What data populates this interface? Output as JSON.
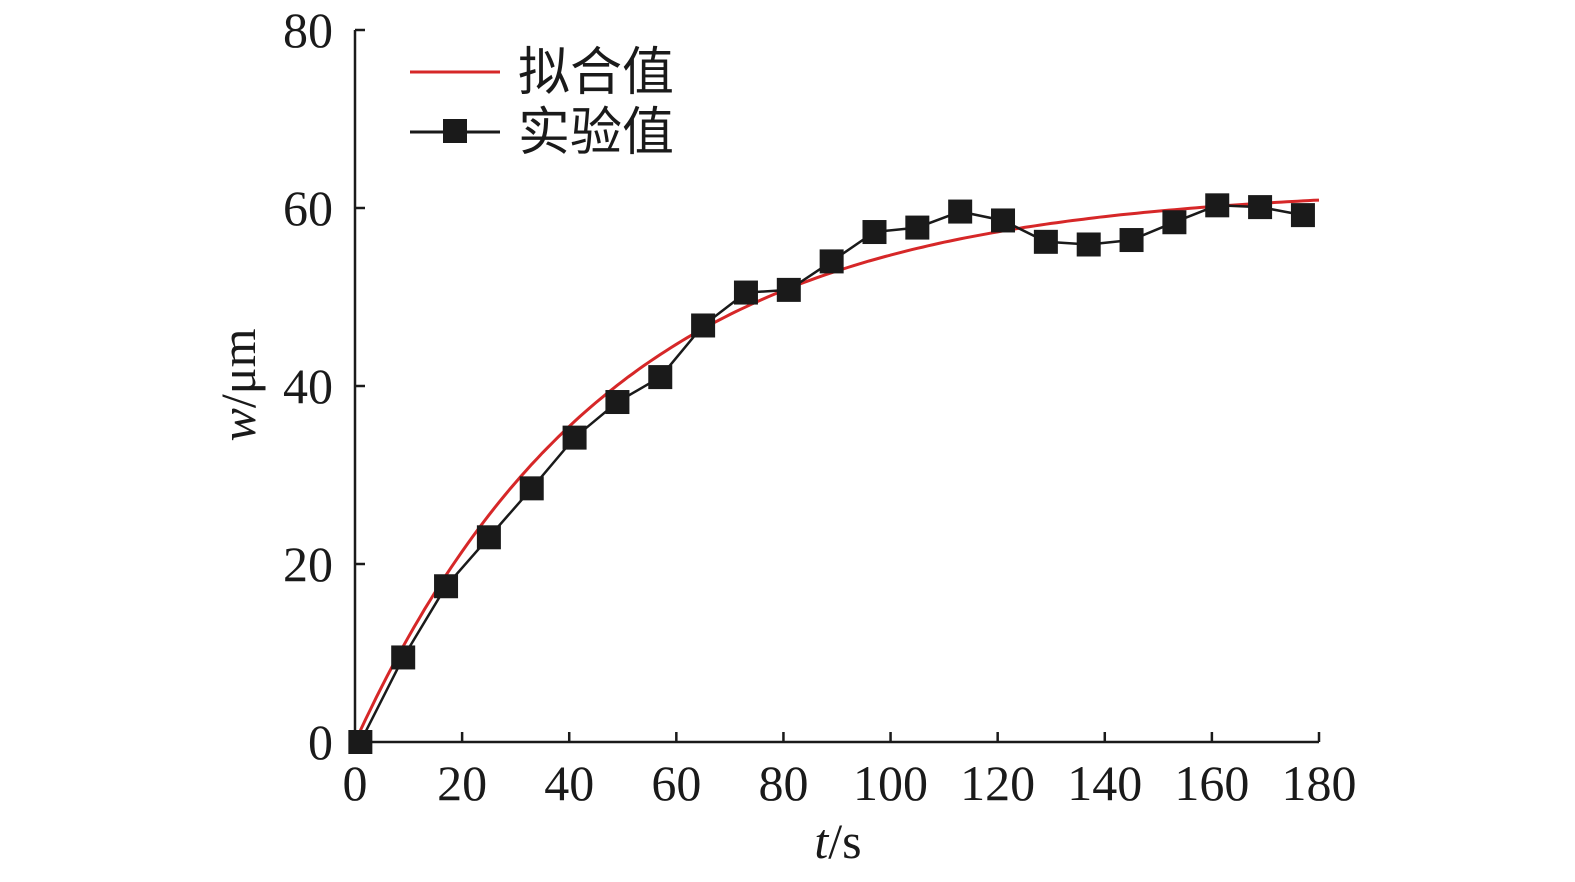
{
  "chart_data": {
    "type": "line",
    "title": "",
    "xlabel": {
      "var": "t",
      "unit": "/s"
    },
    "ylabel": {
      "var": "w",
      "unit": "/μm"
    },
    "xlim": [
      0,
      180
    ],
    "ylim": [
      0,
      80
    ],
    "xticks": [
      0,
      20,
      40,
      60,
      80,
      100,
      120,
      140,
      160,
      180
    ],
    "yticks": [
      0,
      20,
      40,
      60,
      80
    ],
    "grid": false,
    "legend": {
      "placement": "top-left"
    },
    "series": [
      {
        "name": "拟合值",
        "color": "#d62728",
        "style": "line",
        "model": {
          "form": "A*(1-exp(-t/tau))",
          "A": 62.3,
          "tau": 47.5
        },
        "x": [
          0,
          10,
          20,
          30,
          40,
          50,
          60,
          70,
          80,
          90,
          100,
          110,
          120,
          130,
          140,
          150,
          160,
          170,
          180
        ],
        "y": [
          0,
          11.8,
          21.3,
          29.0,
          35.3,
          40.4,
          44.5,
          47.8,
          50.5,
          52.7,
          54.5,
          55.9,
          57.1,
          58.0,
          58.8,
          59.4,
          59.9,
          60.3,
          60.7
        ]
      },
      {
        "name": "实验值",
        "color": "#1a1a1a",
        "style": "line-square-marker",
        "x": [
          1,
          9,
          17,
          25,
          33,
          41,
          49,
          57,
          65,
          73,
          81,
          89,
          97,
          105,
          113,
          121,
          129,
          137,
          145,
          153,
          161,
          169,
          177
        ],
        "y": [
          0,
          9.5,
          17.5,
          23.0,
          28.5,
          34.2,
          38.2,
          41.0,
          46.8,
          50.5,
          50.8,
          54.0,
          57.3,
          57.8,
          59.6,
          58.6,
          56.2,
          55.9,
          56.4,
          58.4,
          60.3,
          60.1,
          59.2
        ]
      }
    ]
  }
}
